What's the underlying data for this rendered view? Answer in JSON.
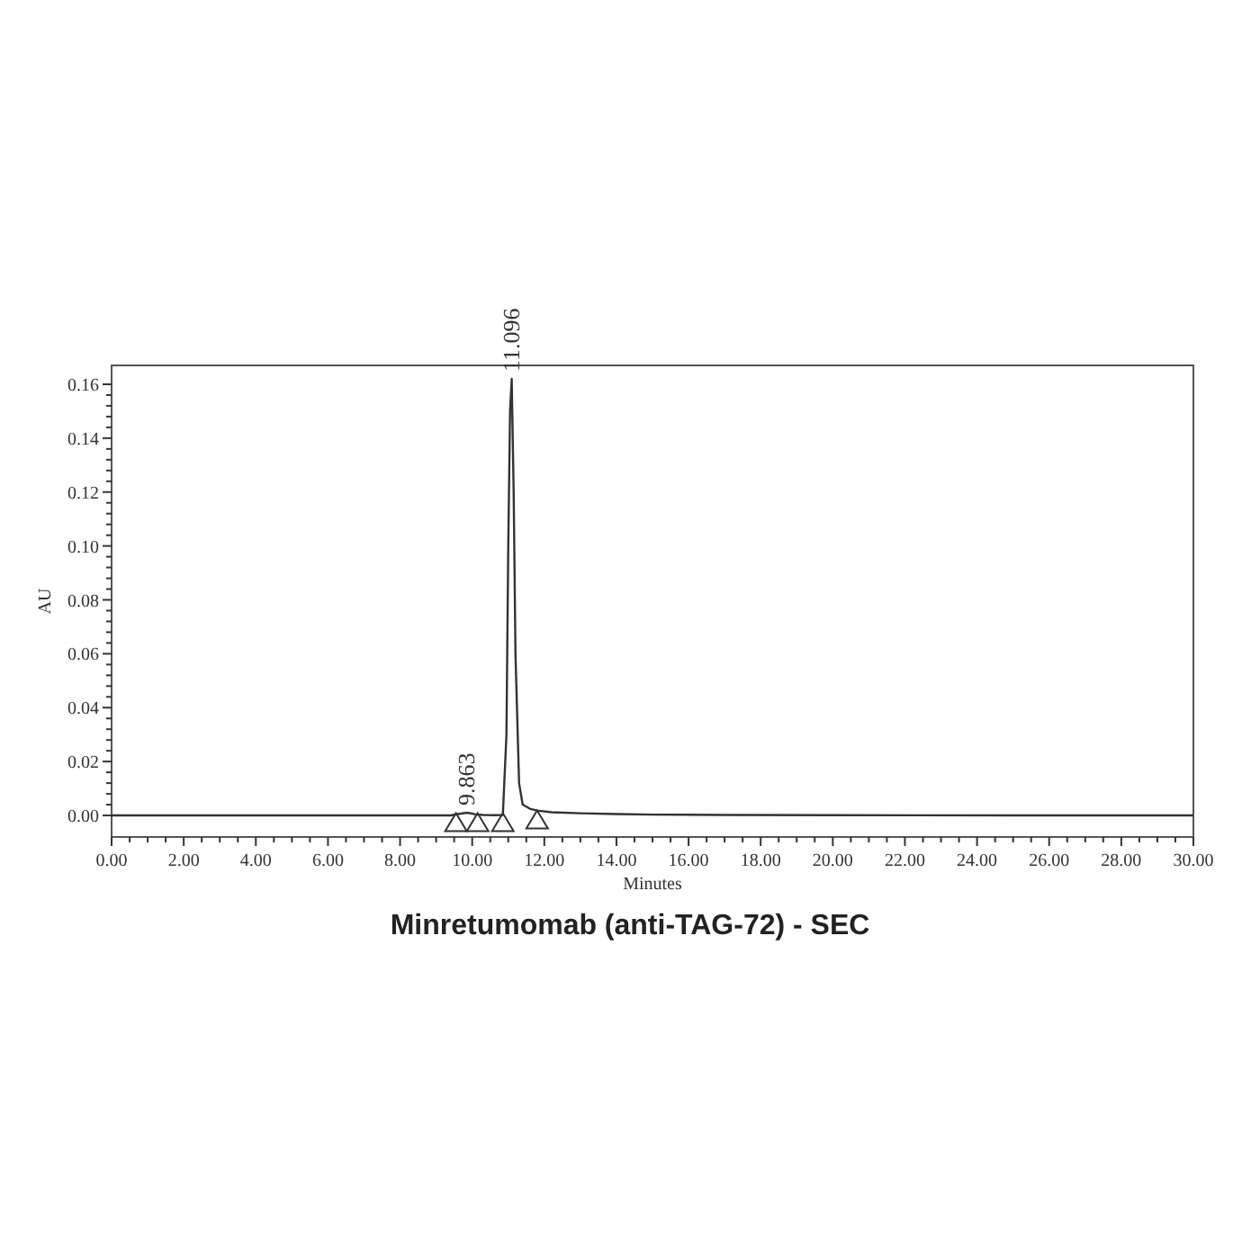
{
  "chart_data": {
    "type": "line",
    "title": "Minretumomab (anti-TAG-72) - SEC",
    "xlabel": "Minutes",
    "ylabel": "AU",
    "xlim": [
      0,
      30
    ],
    "ylim": [
      -0.008,
      0.167
    ],
    "xticks": [
      {
        "value": 0,
        "label": "0.00"
      },
      {
        "value": 2,
        "label": "2.00"
      },
      {
        "value": 4,
        "label": "4.00"
      },
      {
        "value": 6,
        "label": "6.00"
      },
      {
        "value": 8,
        "label": "8.00"
      },
      {
        "value": 10,
        "label": "10.00"
      },
      {
        "value": 12,
        "label": "12.00"
      },
      {
        "value": 14,
        "label": "14.00"
      },
      {
        "value": 16,
        "label": "16.00"
      },
      {
        "value": 18,
        "label": "18.00"
      },
      {
        "value": 20,
        "label": "20.00"
      },
      {
        "value": 22,
        "label": "22.00"
      },
      {
        "value": 24,
        "label": "24.00"
      },
      {
        "value": 26,
        "label": "26.00"
      },
      {
        "value": 28,
        "label": "28.00"
      },
      {
        "value": 30,
        "label": "30.00"
      }
    ],
    "yticks": [
      {
        "value": 0,
        "label": "0.00"
      },
      {
        "value": 0.02,
        "label": "0.02"
      },
      {
        "value": 0.04,
        "label": "0.04"
      },
      {
        "value": 0.06,
        "label": "0.06"
      },
      {
        "value": 0.08,
        "label": "0.08"
      },
      {
        "value": 0.1,
        "label": "0.10"
      },
      {
        "value": 0.12,
        "label": "0.12"
      },
      {
        "value": 0.14,
        "label": "0.14"
      },
      {
        "value": 0.16,
        "label": "0.16"
      }
    ],
    "grid": false,
    "series": [
      {
        "color": "#333333",
        "x": [
          0,
          2,
          4,
          6,
          8,
          9,
          9.4,
          9.6,
          9.863,
          10.1,
          10.3,
          10.6,
          10.85,
          10.95,
          11.0,
          11.05,
          11.096,
          11.15,
          11.2,
          11.3,
          11.4,
          11.6,
          11.8,
          12.2,
          13,
          14,
          15,
          17,
          20,
          25,
          30
        ],
        "values": [
          0,
          0,
          0,
          0,
          0,
          0,
          0,
          0.0005,
          0.001,
          0.0004,
          0.0002,
          0.0001,
          0.0002,
          0.03,
          0.1,
          0.15,
          0.162,
          0.12,
          0.06,
          0.012,
          0.004,
          0.0025,
          0.0018,
          0.0012,
          0.0008,
          0.0005,
          0.0003,
          0.0002,
          0.0001,
          0,
          0
        ]
      },
      {
        "type": "scatter",
        "marker": "triangle",
        "color": "#333333",
        "x": [
          9.55,
          10.15,
          10.85,
          11.8
        ],
        "values": [
          -0.0025,
          -0.0025,
          -0.0025,
          -0.0015
        ]
      }
    ],
    "annotations": [
      {
        "text": "9.863",
        "x": 9.863,
        "y": 0.001
      },
      {
        "text": "11.096",
        "x": 11.096,
        "y": 0.162
      }
    ]
  }
}
